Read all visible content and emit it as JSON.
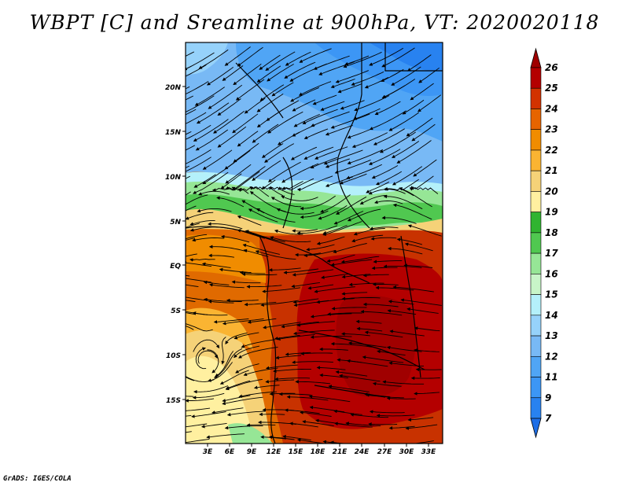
{
  "title": "WBPT [C] and Sreamline at 900hPa, VT: 2020020118",
  "credit": "GrADS: IGES/COLA",
  "map": {
    "lat_labels": [
      "20N",
      "15N",
      "10N",
      "5N",
      "EQ",
      "5S",
      "10S",
      "15S"
    ],
    "lon_labels": [
      "3E",
      "6E",
      "9E",
      "12E",
      "15E",
      "18E",
      "21E",
      "24E",
      "27E",
      "30E",
      "33E"
    ]
  },
  "colorbar": {
    "labels": [
      "7",
      "9",
      "11",
      "12",
      "13",
      "14",
      "15",
      "16",
      "17",
      "18",
      "19",
      "20",
      "21",
      "22",
      "23",
      "24",
      "25",
      "26"
    ],
    "colors": [
      "#1e6ee6",
      "#2882f0",
      "#3c96f5",
      "#50a5f5",
      "#78b9f5",
      "#96d2fa",
      "#b4f0fa",
      "#c8f5c8",
      "#96e696",
      "#50c850",
      "#30b430",
      "#fff0a0",
      "#f5d278",
      "#fab432",
      "#f08c00",
      "#e66400",
      "#d23200",
      "#b40000",
      "#a00000"
    ]
  }
}
